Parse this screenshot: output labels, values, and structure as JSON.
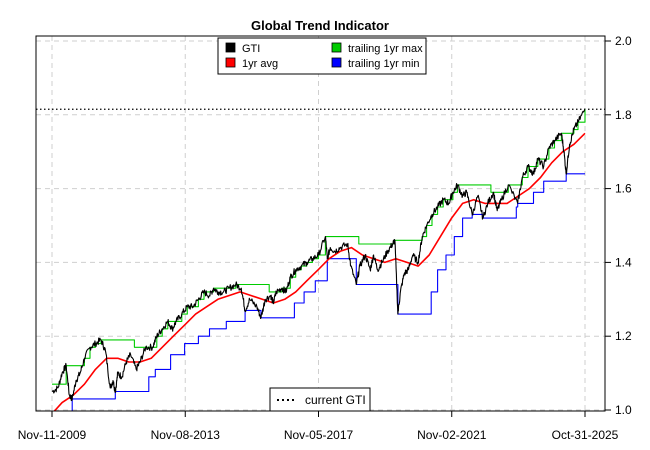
{
  "chart_data": {
    "type": "line",
    "title": "Global Trend Indicator",
    "xlabel": "",
    "ylabel": "",
    "x_ticks": [
      "Nov-11-2009",
      "Nov-08-2013",
      "Nov-05-2017",
      "Nov-02-2021",
      "Oct-31-2025"
    ],
    "y_ticks": [
      1.0,
      1.2,
      1.4,
      1.6,
      1.8,
      2.0
    ],
    "y_tick_labels": [
      "1.0",
      "1.2",
      "1.4",
      "1.6",
      "1.8",
      "2.0"
    ],
    "ylim": [
      1.0,
      2.0
    ],
    "xlim": [
      "2009-11-11",
      "2025-10-31"
    ],
    "y_axis_side": "right",
    "grid": true,
    "legend": {
      "position": "top",
      "entries": [
        {
          "label": "GTI",
          "color": "#000000"
        },
        {
          "label": "1yr avg",
          "color": "#ff0000"
        },
        {
          "label": "trailing 1yr max",
          "color": "#00cc00"
        },
        {
          "label": "trailing 1yr min",
          "color": "#0000ff"
        }
      ]
    },
    "reference_line": {
      "label": "current GTI",
      "value": 1.815,
      "style": "dotted",
      "color": "#000000",
      "legend_position": "bottom"
    },
    "series": [
      {
        "name": "GTI",
        "color": "#000000",
        "points": [
          [
            "2009-11-11",
            1.05
          ],
          [
            "2010-01-15",
            1.06
          ],
          [
            "2010-03-01",
            1.1
          ],
          [
            "2010-04-15",
            1.12
          ],
          [
            "2010-05-20",
            1.04
          ],
          [
            "2010-06-20",
            1.03
          ],
          [
            "2010-08-01",
            1.08
          ],
          [
            "2010-09-15",
            1.1
          ],
          [
            "2010-11-01",
            1.14
          ],
          [
            "2011-01-01",
            1.17
          ],
          [
            "2011-03-01",
            1.18
          ],
          [
            "2011-05-01",
            1.19
          ],
          [
            "2011-06-20",
            1.16
          ],
          [
            "2011-08-10",
            1.06
          ],
          [
            "2011-09-10",
            1.08
          ],
          [
            "2011-10-05",
            1.05
          ],
          [
            "2011-11-01",
            1.1
          ],
          [
            "2011-12-15",
            1.09
          ],
          [
            "2012-02-01",
            1.13
          ],
          [
            "2012-03-20",
            1.15
          ],
          [
            "2012-05-20",
            1.11
          ],
          [
            "2012-07-01",
            1.13
          ],
          [
            "2012-09-01",
            1.17
          ],
          [
            "2012-11-15",
            1.17
          ],
          [
            "2013-01-01",
            1.2
          ],
          [
            "2013-03-01",
            1.22
          ],
          [
            "2013-05-01",
            1.24
          ],
          [
            "2013-06-20",
            1.22
          ],
          [
            "2013-08-01",
            1.24
          ],
          [
            "2013-10-01",
            1.26
          ],
          [
            "2013-12-01",
            1.28
          ],
          [
            "2014-02-01",
            1.28
          ],
          [
            "2014-04-01",
            1.3
          ],
          [
            "2014-06-01",
            1.32
          ],
          [
            "2014-08-01",
            1.31
          ],
          [
            "2014-09-15",
            1.33
          ],
          [
            "2014-11-01",
            1.32
          ],
          [
            "2015-01-01",
            1.32
          ],
          [
            "2015-03-01",
            1.33
          ],
          [
            "2015-05-15",
            1.34
          ],
          [
            "2015-07-15",
            1.33
          ],
          [
            "2015-08-25",
            1.27
          ],
          [
            "2015-10-15",
            1.3
          ],
          [
            "2016-01-01",
            1.28
          ],
          [
            "2016-02-15",
            1.25
          ],
          [
            "2016-04-01",
            1.3
          ],
          [
            "2016-06-01",
            1.31
          ],
          [
            "2016-06-28",
            1.29
          ],
          [
            "2016-08-01",
            1.32
          ],
          [
            "2016-10-01",
            1.33
          ],
          [
            "2016-11-15",
            1.32
          ],
          [
            "2017-01-01",
            1.36
          ],
          [
            "2017-03-01",
            1.38
          ],
          [
            "2017-05-01",
            1.39
          ],
          [
            "2017-07-01",
            1.4
          ],
          [
            "2017-09-01",
            1.41
          ],
          [
            "2017-11-05",
            1.42
          ],
          [
            "2018-01-20",
            1.47
          ],
          [
            "2018-02-10",
            1.41
          ],
          [
            "2018-03-15",
            1.44
          ],
          [
            "2018-05-01",
            1.43
          ],
          [
            "2018-07-01",
            1.44
          ],
          [
            "2018-09-20",
            1.45
          ],
          [
            "2018-10-25",
            1.39
          ],
          [
            "2018-12-24",
            1.34
          ],
          [
            "2019-02-01",
            1.39
          ],
          [
            "2019-04-01",
            1.42
          ],
          [
            "2019-05-25",
            1.38
          ],
          [
            "2019-07-01",
            1.42
          ],
          [
            "2019-08-15",
            1.38
          ],
          [
            "2019-10-01",
            1.4
          ],
          [
            "2019-12-01",
            1.43
          ],
          [
            "2020-01-25",
            1.45
          ],
          [
            "2020-02-20",
            1.46
          ],
          [
            "2020-03-23",
            1.26
          ],
          [
            "2020-04-20",
            1.32
          ],
          [
            "2020-06-01",
            1.37
          ],
          [
            "2020-07-15",
            1.38
          ],
          [
            "2020-09-01",
            1.42
          ],
          [
            "2020-10-30",
            1.4
          ],
          [
            "2020-12-15",
            1.47
          ],
          [
            "2021-02-01",
            1.5
          ],
          [
            "2021-04-01",
            1.53
          ],
          [
            "2021-06-01",
            1.55
          ],
          [
            "2021-08-01",
            1.57
          ],
          [
            "2021-10-01",
            1.56
          ],
          [
            "2021-11-15",
            1.59
          ],
          [
            "2022-01-05",
            1.61
          ],
          [
            "2022-03-01",
            1.58
          ],
          [
            "2022-04-15",
            1.59
          ],
          [
            "2022-06-15",
            1.53
          ],
          [
            "2022-08-15",
            1.58
          ],
          [
            "2022-10-10",
            1.52
          ],
          [
            "2022-12-01",
            1.56
          ],
          [
            "2023-02-01",
            1.59
          ],
          [
            "2023-03-15",
            1.54
          ],
          [
            "2023-05-01",
            1.57
          ],
          [
            "2023-07-15",
            1.61
          ],
          [
            "2023-10-25",
            1.56
          ],
          [
            "2023-12-15",
            1.63
          ],
          [
            "2024-02-15",
            1.66
          ],
          [
            "2024-04-15",
            1.64
          ],
          [
            "2024-06-01",
            1.68
          ],
          [
            "2024-08-05",
            1.66
          ],
          [
            "2024-10-01",
            1.71
          ],
          [
            "2024-12-01",
            1.73
          ],
          [
            "2025-02-15",
            1.75
          ],
          [
            "2025-03-15",
            1.7
          ],
          [
            "2025-04-08",
            1.64
          ],
          [
            "2025-05-15",
            1.72
          ],
          [
            "2025-07-01",
            1.76
          ],
          [
            "2025-08-15",
            1.78
          ],
          [
            "2025-10-31",
            1.815
          ]
        ]
      },
      {
        "name": "1yr avg",
        "color": "#ff0000",
        "points": [
          [
            "2009-11-11",
            0.99
          ],
          [
            "2010-03-01",
            1.02
          ],
          [
            "2010-07-01",
            1.04
          ],
          [
            "2010-11-01",
            1.07
          ],
          [
            "2011-03-01",
            1.11
          ],
          [
            "2011-07-01",
            1.14
          ],
          [
            "2011-11-01",
            1.14
          ],
          [
            "2012-03-01",
            1.13
          ],
          [
            "2012-07-01",
            1.13
          ],
          [
            "2012-11-01",
            1.14
          ],
          [
            "2013-03-01",
            1.17
          ],
          [
            "2013-07-01",
            1.2
          ],
          [
            "2013-11-01",
            1.23
          ],
          [
            "2014-03-01",
            1.26
          ],
          [
            "2014-07-01",
            1.28
          ],
          [
            "2014-11-01",
            1.3
          ],
          [
            "2015-03-01",
            1.31
          ],
          [
            "2015-07-01",
            1.32
          ],
          [
            "2015-11-01",
            1.31
          ],
          [
            "2016-03-01",
            1.3
          ],
          [
            "2016-07-01",
            1.29
          ],
          [
            "2016-11-01",
            1.3
          ],
          [
            "2017-03-01",
            1.32
          ],
          [
            "2017-07-01",
            1.35
          ],
          [
            "2017-11-01",
            1.38
          ],
          [
            "2018-03-01",
            1.41
          ],
          [
            "2018-07-01",
            1.43
          ],
          [
            "2018-11-01",
            1.44
          ],
          [
            "2019-03-01",
            1.42
          ],
          [
            "2019-07-01",
            1.41
          ],
          [
            "2019-11-01",
            1.4
          ],
          [
            "2020-03-01",
            1.41
          ],
          [
            "2020-07-01",
            1.4
          ],
          [
            "2020-11-01",
            1.39
          ],
          [
            "2021-03-01",
            1.42
          ],
          [
            "2021-07-01",
            1.47
          ],
          [
            "2021-11-01",
            1.52
          ],
          [
            "2022-03-01",
            1.56
          ],
          [
            "2022-07-01",
            1.57
          ],
          [
            "2022-11-01",
            1.56
          ],
          [
            "2023-03-01",
            1.56
          ],
          [
            "2023-07-01",
            1.56
          ],
          [
            "2023-11-01",
            1.58
          ],
          [
            "2024-03-01",
            1.6
          ],
          [
            "2024-07-01",
            1.63
          ],
          [
            "2024-11-01",
            1.67
          ],
          [
            "2025-03-01",
            1.7
          ],
          [
            "2025-07-01",
            1.72
          ],
          [
            "2025-10-31",
            1.75
          ]
        ]
      },
      {
        "name": "trailing 1yr max",
        "color": "#00cc00",
        "points": [
          [
            "2009-11-11",
            1.07
          ],
          [
            "2010-04-15",
            1.12
          ],
          [
            "2010-11-01",
            1.14
          ],
          [
            "2011-01-01",
            1.17
          ],
          [
            "2011-03-01",
            1.18
          ],
          [
            "2011-05-01",
            1.19
          ],
          [
            "2012-05-01",
            1.17
          ],
          [
            "2012-11-15",
            1.17
          ],
          [
            "2013-01-01",
            1.2
          ],
          [
            "2013-03-01",
            1.22
          ],
          [
            "2013-05-01",
            1.24
          ],
          [
            "2013-10-01",
            1.26
          ],
          [
            "2013-12-01",
            1.28
          ],
          [
            "2014-04-01",
            1.3
          ],
          [
            "2014-06-01",
            1.32
          ],
          [
            "2014-09-15",
            1.33
          ],
          [
            "2015-05-15",
            1.34
          ],
          [
            "2016-05-15",
            1.32
          ],
          [
            "2016-10-01",
            1.33
          ],
          [
            "2017-01-01",
            1.36
          ],
          [
            "2017-03-01",
            1.38
          ],
          [
            "2017-05-01",
            1.39
          ],
          [
            "2017-07-01",
            1.4
          ],
          [
            "2017-09-01",
            1.41
          ],
          [
            "2017-11-05",
            1.42
          ],
          [
            "2018-01-20",
            1.47
          ],
          [
            "2019-01-20",
            1.45
          ],
          [
            "2019-09-20",
            1.45
          ],
          [
            "2020-01-25",
            1.45
          ],
          [
            "2020-02-20",
            1.46
          ],
          [
            "2020-12-15",
            1.47
          ],
          [
            "2021-02-01",
            1.5
          ],
          [
            "2021-04-01",
            1.53
          ],
          [
            "2021-06-01",
            1.55
          ],
          [
            "2021-08-01",
            1.57
          ],
          [
            "2021-11-15",
            1.59
          ],
          [
            "2022-01-05",
            1.61
          ],
          [
            "2023-01-05",
            1.59
          ],
          [
            "2023-07-15",
            1.61
          ],
          [
            "2023-12-15",
            1.63
          ],
          [
            "2024-02-15",
            1.66
          ],
          [
            "2024-06-01",
            1.68
          ],
          [
            "2024-10-01",
            1.71
          ],
          [
            "2024-12-01",
            1.73
          ],
          [
            "2025-02-15",
            1.75
          ],
          [
            "2025-07-01",
            1.76
          ],
          [
            "2025-08-15",
            1.78
          ],
          [
            "2025-10-31",
            1.815
          ]
        ]
      },
      {
        "name": "trailing 1yr min",
        "color": "#0000ff",
        "points": [
          [
            "2009-11-11",
            0.95
          ],
          [
            "2010-06-20",
            1.03
          ],
          [
            "2011-06-20",
            1.03
          ],
          [
            "2011-10-05",
            1.05
          ],
          [
            "2012-10-05",
            1.09
          ],
          [
            "2012-12-15",
            1.11
          ],
          [
            "2013-06-01",
            1.15
          ],
          [
            "2013-11-01",
            1.18
          ],
          [
            "2014-04-01",
            1.2
          ],
          [
            "2014-08-01",
            1.22
          ],
          [
            "2015-02-01",
            1.24
          ],
          [
            "2015-08-25",
            1.27
          ],
          [
            "2016-02-15",
            1.25
          ],
          [
            "2017-02-15",
            1.29
          ],
          [
            "2017-06-01",
            1.32
          ],
          [
            "2017-10-01",
            1.35
          ],
          [
            "2018-02-10",
            1.41
          ],
          [
            "2018-12-24",
            1.34
          ],
          [
            "2019-12-24",
            1.34
          ],
          [
            "2020-03-23",
            1.26
          ],
          [
            "2021-03-23",
            1.32
          ],
          [
            "2021-06-01",
            1.38
          ],
          [
            "2021-09-01",
            1.42
          ],
          [
            "2021-12-01",
            1.47
          ],
          [
            "2022-03-01",
            1.52
          ],
          [
            "2022-06-15",
            1.53
          ],
          [
            "2022-10-10",
            1.52
          ],
          [
            "2023-10-10",
            1.55
          ],
          [
            "2023-10-25",
            1.56
          ],
          [
            "2024-04-15",
            1.59
          ],
          [
            "2024-08-05",
            1.62
          ],
          [
            "2025-04-08",
            1.64
          ],
          [
            "2025-10-31",
            1.64
          ]
        ]
      }
    ]
  }
}
